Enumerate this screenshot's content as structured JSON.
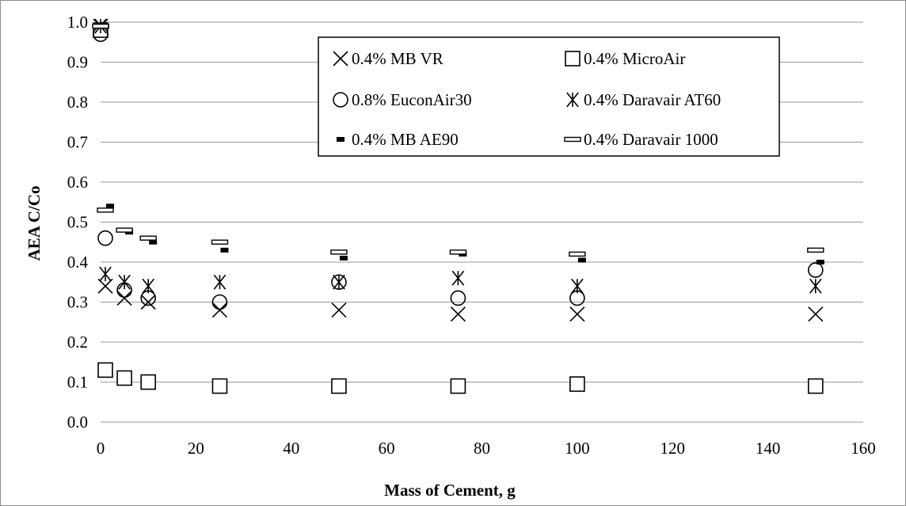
{
  "chart_data": {
    "type": "scatter",
    "title": "",
    "xlabel": "Mass of Cement, g",
    "ylabel": "AEA C/Co",
    "xlim": [
      0,
      160
    ],
    "ylim": [
      0.0,
      1.0
    ],
    "xticks": [
      "0",
      "20",
      "40",
      "60",
      "80",
      "100",
      "120",
      "140",
      "160"
    ],
    "yticks": [
      "0.0",
      "0.1",
      "0.2",
      "0.3",
      "0.4",
      "0.5",
      "0.6",
      "0.7",
      "0.8",
      "0.9",
      "1.0"
    ],
    "grid": "horizontal",
    "legend_position": "top-right",
    "series": [
      {
        "name": "0.4% MB VR",
        "marker": "x",
        "x": [
          0,
          1,
          5,
          10,
          25,
          50,
          75,
          100,
          150
        ],
        "y": [
          0.99,
          0.34,
          0.31,
          0.3,
          0.28,
          0.28,
          0.27,
          0.27,
          0.27
        ]
      },
      {
        "name": "0.4% MicroAir",
        "marker": "square",
        "x": [
          0,
          1,
          5,
          10,
          25,
          50,
          75,
          100,
          150
        ],
        "y": [
          0.98,
          0.13,
          0.11,
          0.1,
          0.09,
          0.09,
          0.09,
          0.095,
          0.09
        ]
      },
      {
        "name": "0.8% EuconAir30",
        "marker": "circle",
        "x": [
          0,
          1,
          5,
          10,
          25,
          50,
          75,
          100,
          150
        ],
        "y": [
          0.97,
          0.46,
          0.33,
          0.31,
          0.3,
          0.35,
          0.31,
          0.31,
          0.38
        ]
      },
      {
        "name": "0.4% Daravair AT60",
        "marker": "asterisk",
        "x": [
          0,
          1,
          5,
          10,
          25,
          50,
          75,
          100,
          150
        ],
        "y": [
          0.99,
          0.37,
          0.35,
          0.34,
          0.35,
          0.35,
          0.36,
          0.34,
          0.34
        ]
      },
      {
        "name": "0.4% MB AE90",
        "marker": "dash",
        "x": [
          0,
          1,
          5,
          10,
          25,
          50,
          75,
          100,
          150
        ],
        "y": [
          0.99,
          0.54,
          0.475,
          0.45,
          0.43,
          0.41,
          0.42,
          0.405,
          0.4
        ]
      },
      {
        "name": "0.4% Daravair 1000",
        "marker": "dash-outline",
        "x": [
          0,
          1,
          5,
          10,
          25,
          50,
          75,
          100,
          150
        ],
        "y": [
          0.99,
          0.53,
          0.48,
          0.46,
          0.45,
          0.425,
          0.425,
          0.42,
          0.43
        ]
      }
    ]
  }
}
